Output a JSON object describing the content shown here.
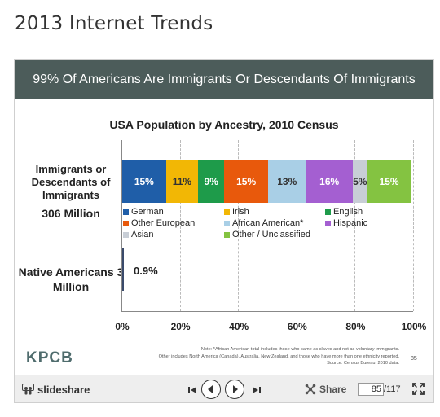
{
  "page": {
    "title": "2013 Internet Trends"
  },
  "slide": {
    "header": "99% Of Americans Are Immigrants Or Descendants Of Immigrants",
    "left_labels": {
      "immigrants": "Immigrants or Descendants of Immigrants",
      "immigrants_count": "306 Million",
      "native": "Native Americans 3 Million"
    },
    "brand": "KPCB",
    "notes": [
      "Note: *African American total includes those who came as slaves and not as voluntary immigrants.",
      "Other includes North America (Canada), Australia, New Zealand, and those who have more than one ethnicity reported.",
      "Source: Census Bureau, 2010 data."
    ],
    "number": "85"
  },
  "chart_data": {
    "type": "bar",
    "orientation": "horizontal-stacked",
    "title": "USA Population by Ancestry, 2010 Census",
    "xlim": [
      0,
      100
    ],
    "x_ticks": [
      "0%",
      "20%",
      "40%",
      "60%",
      "80%",
      "100%"
    ],
    "grid": true,
    "rows": [
      {
        "name": "Immigrants or Descendants of Immigrants",
        "segments": [
          {
            "name": "German",
            "value": 15,
            "label": "15%",
            "color": "#1f5ea8"
          },
          {
            "name": "Irish",
            "value": 11,
            "label": "11%",
            "color": "#f2b705"
          },
          {
            "name": "English",
            "value": 9,
            "label": "9%",
            "color": "#1e9b4a"
          },
          {
            "name": "Other European",
            "value": 15,
            "label": "15%",
            "color": "#e8590c"
          },
          {
            "name": "African American*",
            "value": 13,
            "label": "13%",
            "color": "#a9cfe6"
          },
          {
            "name": "Hispanic",
            "value": 16,
            "label": "16%",
            "color": "#a45fd1"
          },
          {
            "name": "Asian",
            "value": 5,
            "label": "5%",
            "color": "#c8ced6"
          },
          {
            "name": "Other / Unclassified",
            "value": 15,
            "label": "15%",
            "color": "#84c341"
          }
        ]
      },
      {
        "name": "Native Americans",
        "segments": [
          {
            "name": "Native Americans",
            "value": 0.9,
            "label": "0.9%",
            "color": "#3a4a6b"
          }
        ]
      }
    ],
    "legend": [
      {
        "name": "German",
        "color": "#1f5ea8"
      },
      {
        "name": "Irish",
        "color": "#f2b705"
      },
      {
        "name": "English",
        "color": "#1e9b4a"
      },
      {
        "name": "Other European",
        "color": "#e8590c"
      },
      {
        "name": "African American*",
        "color": "#a9cfe6"
      },
      {
        "name": "Hispanic",
        "color": "#a45fd1"
      },
      {
        "name": "Asian",
        "color": "#c8ced6"
      },
      {
        "name": "Other / Unclassified",
        "color": "#84c341"
      }
    ]
  },
  "toolbar": {
    "brand": "slideshare",
    "share_label": "Share",
    "current_page": "85",
    "total_pages": "/117",
    "icons": [
      "slideshare-logo-icon",
      "first-slide-icon",
      "prev-slide-icon",
      "next-slide-icon",
      "last-slide-icon",
      "share-icon",
      "fullscreen-icon"
    ]
  }
}
